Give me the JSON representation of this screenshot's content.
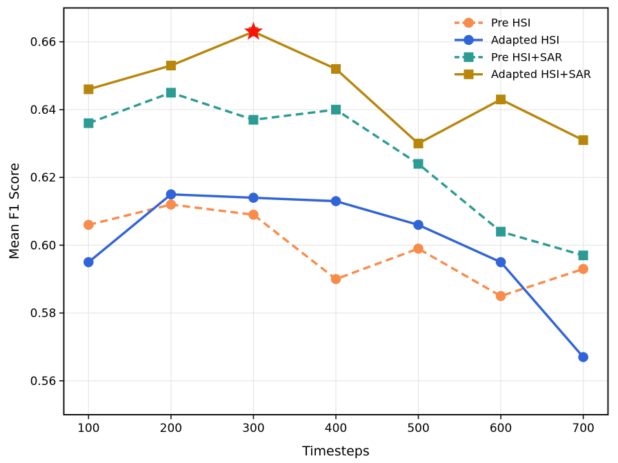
{
  "chart_data": {
    "type": "line",
    "title": "",
    "xlabel": "Timesteps",
    "ylabel": "Mean F1 Score",
    "x": [
      100,
      200,
      300,
      400,
      500,
      600,
      700
    ],
    "xlim": [
      70,
      730
    ],
    "ylim": [
      0.55,
      0.67
    ],
    "xticks": [
      100,
      200,
      300,
      400,
      500,
      600,
      700
    ],
    "yticks": [
      0.56,
      0.58,
      0.6,
      0.62,
      0.64,
      0.66
    ],
    "grid": true,
    "legend_position": "upper right",
    "series": [
      {
        "name": "Pre HSI",
        "color": "#f98b4b",
        "line": "dashed",
        "marker": "circle",
        "values": [
          0.606,
          0.612,
          0.609,
          0.59,
          0.599,
          0.585,
          0.593
        ]
      },
      {
        "name": "Adapted HSI",
        "color": "#3064d8",
        "line": "solid",
        "marker": "circle",
        "values": [
          0.595,
          0.615,
          0.614,
          0.613,
          0.606,
          0.595,
          0.567
        ]
      },
      {
        "name": "Pre HSI+SAR",
        "color": "#2b9c94",
        "line": "dashed",
        "marker": "square",
        "values": [
          0.636,
          0.645,
          0.637,
          0.64,
          0.624,
          0.604,
          0.597
        ]
      },
      {
        "name": "Adapted HSI+SAR",
        "color": "#b8860b",
        "line": "solid",
        "marker": "square",
        "values": [
          0.646,
          0.653,
          0.663,
          0.652,
          0.63,
          0.643,
          0.631
        ]
      }
    ],
    "annotations": [
      {
        "type": "star",
        "x": 300,
        "y": 0.663,
        "color": "#fb0f0f",
        "meaning": "best score marker"
      }
    ],
    "colors": {
      "grid": "#e7e7e7",
      "spine": "#111111",
      "text": "#000000",
      "background": "#ffffff"
    }
  }
}
